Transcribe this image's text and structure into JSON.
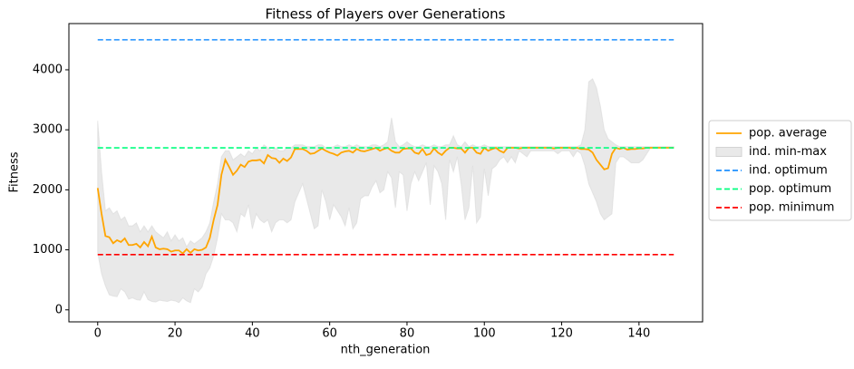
{
  "chart_data": {
    "type": "line",
    "title": "Fitness of Players over Generations",
    "xlabel": "nth_generation",
    "ylabel": "Fitness",
    "xlim": [
      -7.45,
      156.45
    ],
    "ylim": [
      -200,
      4770
    ],
    "xticks": [
      0,
      20,
      40,
      60,
      80,
      100,
      120,
      140
    ],
    "yticks": [
      0,
      1000,
      2000,
      3000,
      4000
    ],
    "legend": "outside-right",
    "x": [
      0,
      1,
      2,
      3,
      4,
      5,
      6,
      7,
      8,
      9,
      10,
      11,
      12,
      13,
      14,
      15,
      16,
      17,
      18,
      19,
      20,
      21,
      22,
      23,
      24,
      25,
      26,
      27,
      28,
      29,
      30,
      31,
      32,
      33,
      34,
      35,
      36,
      37,
      38,
      39,
      40,
      41,
      42,
      43,
      44,
      45,
      46,
      47,
      48,
      49,
      50,
      51,
      52,
      53,
      54,
      55,
      56,
      57,
      58,
      59,
      60,
      61,
      62,
      63,
      64,
      65,
      66,
      67,
      68,
      69,
      70,
      71,
      72,
      73,
      74,
      75,
      76,
      77,
      78,
      79,
      80,
      81,
      82,
      83,
      84,
      85,
      86,
      87,
      88,
      89,
      90,
      91,
      92,
      93,
      94,
      95,
      96,
      97,
      98,
      99,
      100,
      101,
      102,
      103,
      104,
      105,
      106,
      107,
      108,
      109,
      110,
      111,
      112,
      113,
      114,
      115,
      116,
      117,
      118,
      119,
      120,
      121,
      122,
      123,
      124,
      125,
      126,
      127,
      128,
      129,
      130,
      131,
      132,
      133,
      134,
      135,
      136,
      137,
      138,
      139,
      140,
      141,
      142,
      143,
      144,
      145,
      146,
      147,
      148,
      149
    ],
    "series": [
      {
        "name": "pop. average",
        "color": "#ffa500",
        "style": "solid",
        "values": [
          2030,
          1600,
          1230,
          1210,
          1110,
          1160,
          1130,
          1190,
          1080,
          1080,
          1100,
          1040,
          1130,
          1060,
          1220,
          1040,
          1010,
          1020,
          1010,
          970,
          990,
          990,
          940,
          1010,
          950,
          1010,
          990,
          1000,
          1040,
          1200,
          1500,
          1750,
          2250,
          2500,
          2380,
          2250,
          2320,
          2420,
          2380,
          2470,
          2490,
          2490,
          2500,
          2440,
          2580,
          2530,
          2520,
          2450,
          2520,
          2480,
          2540,
          2680,
          2680,
          2680,
          2650,
          2600,
          2610,
          2650,
          2690,
          2650,
          2620,
          2600,
          2570,
          2620,
          2640,
          2650,
          2620,
          2680,
          2650,
          2640,
          2660,
          2680,
          2700,
          2650,
          2680,
          2700,
          2650,
          2620,
          2620,
          2680,
          2690,
          2690,
          2620,
          2600,
          2680,
          2580,
          2600,
          2690,
          2620,
          2580,
          2650,
          2700,
          2700,
          2690,
          2690,
          2620,
          2700,
          2700,
          2620,
          2600,
          2700,
          2650,
          2680,
          2700,
          2650,
          2620,
          2700,
          2700,
          2700,
          2690,
          2700,
          2700,
          2700,
          2700,
          2700,
          2700,
          2700,
          2700,
          2690,
          2700,
          2700,
          2700,
          2700,
          2690,
          2700,
          2680,
          2680,
          2670,
          2620,
          2500,
          2420,
          2340,
          2360,
          2600,
          2700,
          2680,
          2700,
          2670,
          2680,
          2680,
          2690,
          2690,
          2700,
          2700,
          2700,
          2700,
          2700,
          2700,
          2700,
          2700
        ]
      },
      {
        "name": "ind. min-max",
        "color": "#d3d3d3",
        "style": "band",
        "low": [
          950,
          600,
          400,
          250,
          230,
          220,
          350,
          300,
          180,
          200,
          170,
          160,
          300,
          170,
          140,
          130,
          160,
          150,
          140,
          160,
          150,
          120,
          200,
          150,
          120,
          350,
          300,
          380,
          600,
          700,
          900,
          1200,
          1600,
          1500,
          1500,
          1450,
          1300,
          1600,
          1550,
          1750,
          1350,
          1600,
          1500,
          1450,
          1500,
          1300,
          1450,
          1500,
          1500,
          1450,
          1500,
          1800,
          1950,
          2100,
          1850,
          1600,
          1350,
          1400,
          2000,
          1800,
          1500,
          1750,
          1650,
          1550,
          1400,
          1700,
          1350,
          1450,
          1850,
          1900,
          1900,
          2050,
          2150,
          1950,
          2000,
          2300,
          2200,
          1700,
          2300,
          2250,
          1650,
          2100,
          2300,
          2150,
          2300,
          2450,
          1750,
          2400,
          2300,
          2100,
          1500,
          2500,
          2300,
          2550,
          2100,
          1500,
          1700,
          2400,
          1450,
          1550,
          2350,
          1900,
          2350,
          2400,
          2500,
          2550,
          2450,
          2550,
          2450,
          2650,
          2600,
          2550,
          2650,
          2650,
          2650,
          2650,
          2650,
          2650,
          2650,
          2600,
          2650,
          2650,
          2650,
          2550,
          2650,
          2600,
          2400,
          2100,
          1950,
          1800,
          1600,
          1500,
          1550,
          1600,
          2450,
          2550,
          2550,
          2500,
          2450,
          2450,
          2450,
          2500,
          2600,
          2700,
          2700,
          2700,
          2700,
          2700,
          2700,
          2700
        ],
        "high": [
          3150,
          2300,
          1650,
          1700,
          1600,
          1650,
          1500,
          1550,
          1400,
          1400,
          1450,
          1300,
          1400,
          1300,
          1400,
          1300,
          1250,
          1200,
          1300,
          1150,
          1250,
          1150,
          1200,
          1050,
          1150,
          1100,
          1150,
          1200,
          1300,
          1450,
          1800,
          2100,
          2550,
          2650,
          2650,
          2500,
          2550,
          2600,
          2550,
          2650,
          2600,
          2700,
          2650,
          2750,
          2700,
          2650,
          2700,
          2650,
          2650,
          2700,
          2700,
          2750,
          2750,
          2750,
          2720,
          2720,
          2720,
          2750,
          2750,
          2700,
          2700,
          2720,
          2750,
          2720,
          2720,
          2750,
          2720,
          2750,
          2720,
          2720,
          2720,
          2750,
          2750,
          2720,
          2750,
          2800,
          3200,
          2800,
          2720,
          2750,
          2800,
          2750,
          2720,
          2720,
          2750,
          2720,
          2720,
          2750,
          2720,
          2720,
          2750,
          2750,
          2900,
          2750,
          2720,
          2800,
          2720,
          2750,
          2720,
          2720,
          2750,
          2720,
          2720,
          2720,
          2720,
          2720,
          2720,
          2720,
          2720,
          2720,
          2720,
          2720,
          2720,
          2720,
          2720,
          2720,
          2720,
          2720,
          2720,
          2720,
          2720,
          2720,
          2720,
          2720,
          2720,
          2750,
          3000,
          3800,
          3850,
          3700,
          3400,
          3000,
          2850,
          2800,
          2750,
          2720,
          2720,
          2720,
          2720,
          2720,
          2720,
          2720,
          2720,
          2720,
          2720,
          2720,
          2720,
          2720,
          2720,
          2720
        ]
      },
      {
        "name": "ind. optimum",
        "color": "#1e90ff",
        "style": "dashed",
        "hline": 4500
      },
      {
        "name": "pop. optimum",
        "color": "#00ff7f",
        "style": "dashed",
        "hline": 2700
      },
      {
        "name": "pop. minimum",
        "color": "#ff0000",
        "style": "dashed",
        "hline": 920
      }
    ]
  }
}
